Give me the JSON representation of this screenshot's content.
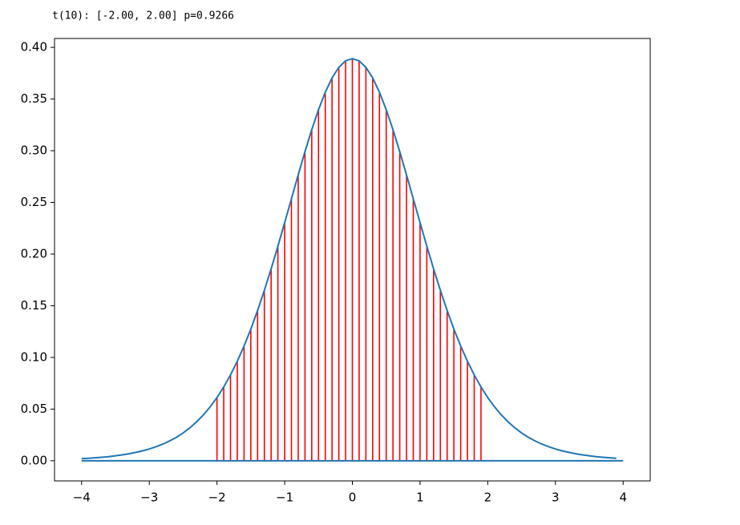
{
  "chart_data": {
    "type": "line",
    "title": "t(10): [-2.00, 2.00]  p=0.9266",
    "xlim": [
      -4.4,
      4.4
    ],
    "ylim": [
      -0.0195,
      0.4086
    ],
    "xticks": [
      {
        "value": -4,
        "label": "−4"
      },
      {
        "value": -3,
        "label": "−3"
      },
      {
        "value": -2,
        "label": "−2"
      },
      {
        "value": -1,
        "label": "−1"
      },
      0,
      1,
      2,
      3,
      4
    ],
    "yticks": [
      {
        "value": 0,
        "label": "0.00"
      },
      {
        "value": 0.05,
        "label": "0.05"
      },
      {
        "value": 0.1,
        "label": "0.10"
      },
      {
        "value": 0.15,
        "label": "0.15"
      },
      {
        "value": 0.2,
        "label": "0.20"
      },
      {
        "value": 0.25,
        "label": "0.25"
      },
      {
        "value": 0.3,
        "label": "0.30"
      },
      {
        "value": 0.35,
        "label": "0.35"
      },
      {
        "value": 0.4,
        "label": "0.40"
      }
    ],
    "series": [
      {
        "type": "line",
        "color": "#1f77b4",
        "x": [
          -4.0,
          -3.9,
          -3.8,
          -3.7,
          -3.6,
          -3.5,
          -3.4,
          -3.3,
          -3.2,
          -3.1,
          -3.0,
          -2.9,
          -2.8,
          -2.7,
          -2.6,
          -2.5,
          -2.4,
          -2.3,
          -2.2,
          -2.1,
          -2.0,
          -1.9,
          -1.8,
          -1.7,
          -1.6,
          -1.5,
          -1.4,
          -1.3,
          -1.2,
          -1.1,
          -1.0,
          -0.9,
          -0.8,
          -0.7,
          -0.6,
          -0.5,
          -0.4,
          -0.3,
          -0.2,
          -0.1,
          0.0,
          0.1,
          0.2,
          0.3,
          0.4,
          0.5,
          0.6,
          0.7,
          0.8,
          0.9,
          1.0,
          1.1,
          1.2,
          1.3,
          1.4,
          1.5,
          1.6,
          1.7,
          1.8,
          1.9,
          2.0,
          2.1,
          2.2,
          2.3,
          2.4,
          2.5,
          2.6,
          2.7,
          2.8,
          2.9,
          3.0,
          3.1,
          3.2,
          3.3,
          3.4,
          3.5,
          3.6,
          3.7,
          3.8,
          3.9
        ],
        "values": [
          0.002,
          0.0024,
          0.0029,
          0.0034,
          0.004,
          0.0048,
          0.0057,
          0.0068,
          0.0081,
          0.0096,
          0.0114,
          0.0136,
          0.0161,
          0.0192,
          0.0227,
          0.0269,
          0.0319,
          0.0377,
          0.0444,
          0.0522,
          0.0611,
          0.0714,
          0.0831,
          0.0963,
          0.1111,
          0.1274,
          0.1454,
          0.1649,
          0.1857,
          0.2076,
          0.2304,
          0.2535,
          0.2766,
          0.2991,
          0.3203,
          0.3397,
          0.3566,
          0.3704,
          0.3807,
          0.387,
          0.3891,
          0.387,
          0.3807,
          0.3704,
          0.3566,
          0.3397,
          0.3203,
          0.2991,
          0.2766,
          0.2535,
          0.2304,
          0.2076,
          0.1857,
          0.1649,
          0.1454,
          0.1274,
          0.1111,
          0.0963,
          0.0831,
          0.0714,
          0.0611,
          0.0522,
          0.0444,
          0.0377,
          0.0319,
          0.0269,
          0.0227,
          0.0192,
          0.0161,
          0.0136,
          0.0114,
          0.0096,
          0.0081,
          0.0068,
          0.0057,
          0.0048,
          0.004,
          0.0034,
          0.0029,
          0.0024
        ]
      },
      {
        "type": "line",
        "color": "#1f77b4",
        "x": [
          -4,
          4
        ],
        "values": [
          0,
          0
        ]
      },
      {
        "type": "vlines",
        "color": "#ff0000",
        "x": [
          -2.0,
          -1.9,
          -1.8,
          -1.7,
          -1.6,
          -1.5,
          -1.4,
          -1.3,
          -1.2,
          -1.1,
          -1.0,
          -0.9,
          -0.8,
          -0.7,
          -0.6,
          -0.5,
          -0.4,
          -0.3,
          -0.2,
          -0.1,
          0.0,
          0.1,
          0.2,
          0.3,
          0.4,
          0.5,
          0.6,
          0.7,
          0.8,
          0.9,
          1.0,
          1.1,
          1.2,
          1.3,
          1.4,
          1.5,
          1.6,
          1.7,
          1.8,
          1.9
        ],
        "values": [
          0.0611,
          0.0714,
          0.0831,
          0.0963,
          0.1111,
          0.1274,
          0.1454,
          0.1649,
          0.1857,
          0.2076,
          0.2304,
          0.2535,
          0.2766,
          0.2991,
          0.3203,
          0.3397,
          0.3566,
          0.3704,
          0.3807,
          0.387,
          0.3891,
          0.387,
          0.3807,
          0.3704,
          0.3566,
          0.3397,
          0.3203,
          0.2991,
          0.2766,
          0.2535,
          0.2304,
          0.2076,
          0.1857,
          0.1649,
          0.1454,
          0.1274,
          0.1111,
          0.0963,
          0.0831,
          0.0714
        ]
      }
    ]
  }
}
